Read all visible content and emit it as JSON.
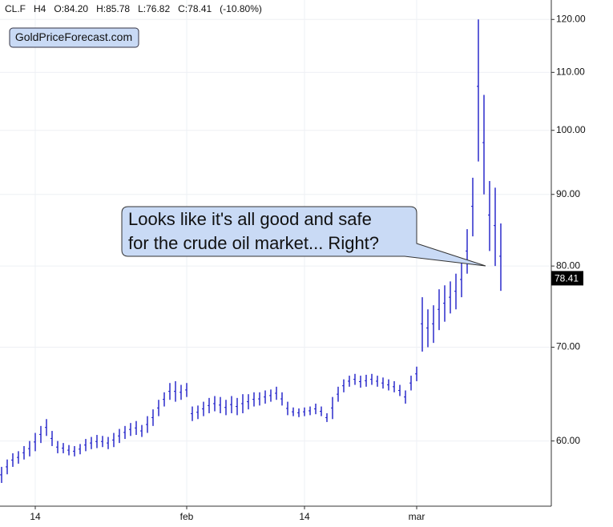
{
  "chart_data": {
    "type": "range-bars",
    "header": [
      "CL.F",
      "H4",
      "O:84.20",
      "H:85.78",
      "L:76.82",
      "C:78.41",
      "(-10.80%)"
    ],
    "logo": "GoldPriceForecast.com",
    "annotations": [
      "Looks like it's all good and safe",
      "for the crude oil market... Right?"
    ],
    "color": "#1c1cc8",
    "log_scale": true,
    "grid": true,
    "ylim": [
      53.9,
      123.9
    ],
    "yticks": [
      {
        "value": 60,
        "label": "60.00"
      },
      {
        "value": 70,
        "label": "70.00"
      },
      {
        "value": 80,
        "label": "80.00"
      },
      {
        "value": 90,
        "label": "90.00"
      },
      {
        "value": 100,
        "label": "100.00"
      },
      {
        "value": 110,
        "label": "110.00"
      },
      {
        "value": 120,
        "label": "120.00"
      }
    ],
    "last_price": {
      "value": 78.41,
      "label": "78.41"
    },
    "categories": [
      null,
      null,
      null,
      null,
      null,
      null,
      "14",
      null,
      null,
      null,
      null,
      null,
      null,
      null,
      null,
      null,
      null,
      null,
      null,
      null,
      null,
      null,
      null,
      null,
      null,
      null,
      null,
      null,
      null,
      null,
      null,
      null,
      null,
      "feb",
      null,
      null,
      null,
      null,
      null,
      null,
      null,
      null,
      null,
      null,
      null,
      null,
      null,
      null,
      null,
      null,
      null,
      null,
      null,
      null,
      "14",
      null,
      null,
      null,
      null,
      null,
      null,
      null,
      null,
      null,
      null,
      null,
      null,
      null,
      null,
      null,
      null,
      null,
      null,
      null,
      "mar",
      null,
      null,
      null,
      null,
      null,
      null,
      null,
      null,
      null,
      null,
      null,
      null,
      null,
      null,
      null
    ],
    "low": [
      56.0,
      56.8,
      57.5,
      57.8,
      58.2,
      58.5,
      59.0,
      59.8,
      60.5,
      59.5,
      58.8,
      58.8,
      58.6,
      58.5,
      58.7,
      59.0,
      59.2,
      59.3,
      59.4,
      59.2,
      59.4,
      59.8,
      60.2,
      60.5,
      60.6,
      60.4,
      60.8,
      61.5,
      62.5,
      63.5,
      64.2,
      64.0,
      64.2,
      64.5,
      62.0,
      62.2,
      62.5,
      62.8,
      63.0,
      62.8,
      62.6,
      62.8,
      62.6,
      62.8,
      63.2,
      63.5,
      63.6,
      63.8,
      64.0,
      64.2,
      63.6,
      62.6,
      62.5,
      62.4,
      62.5,
      62.6,
      62.7,
      62.5,
      61.9,
      62.2,
      64.0,
      65.0,
      65.6,
      65.8,
      65.5,
      65.6,
      65.8,
      65.6,
      65.4,
      65.2,
      65.0,
      64.6,
      63.8,
      65.2,
      66.2,
      69.5,
      70.0,
      70.5,
      72.0,
      73.0,
      74.0,
      74.5,
      76.0,
      79.0,
      84.0,
      95.0,
      90.0,
      82.0,
      80.0,
      76.8
    ],
    "high": [
      57.5,
      58.2,
      58.8,
      59.0,
      59.5,
      60.0,
      60.8,
      61.5,
      62.2,
      61.0,
      60.0,
      59.8,
      59.6,
      59.5,
      59.7,
      60.2,
      60.4,
      60.6,
      60.5,
      60.4,
      60.8,
      61.2,
      61.5,
      61.8,
      62.0,
      61.6,
      62.5,
      63.2,
      64.2,
      65.0,
      66.0,
      66.2,
      65.8,
      66.0,
      63.5,
      63.6,
      64.0,
      64.4,
      64.6,
      64.5,
      64.2,
      64.6,
      64.4,
      64.8,
      64.8,
      65.0,
      65.0,
      65.2,
      65.3,
      65.6,
      65.0,
      64.0,
      63.4,
      63.3,
      63.4,
      63.5,
      63.8,
      63.5,
      62.8,
      64.5,
      65.6,
      66.4,
      66.8,
      67.0,
      66.8,
      66.9,
      67.0,
      66.8,
      66.6,
      66.4,
      66.2,
      65.8,
      65.2,
      66.8,
      67.8,
      76.0,
      74.5,
      75.0,
      77.0,
      77.5,
      78.0,
      79.0,
      80.5,
      85.0,
      92.5,
      120.0,
      106.0,
      92.0,
      91.0,
      85.8
    ]
  }
}
